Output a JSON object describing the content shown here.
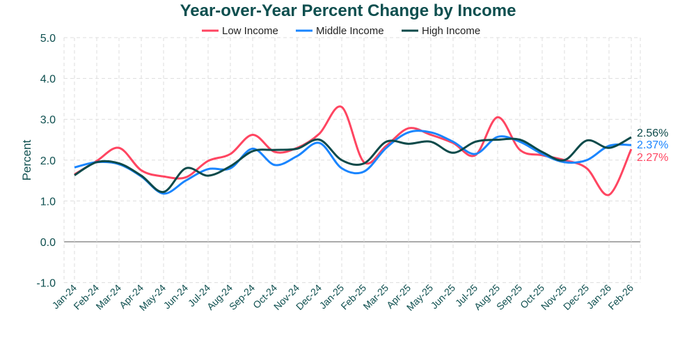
{
  "chart_data": {
    "type": "line",
    "title": "Year-over-Year Percent Change by Income",
    "ylabel": "Percent",
    "xlabel": "",
    "ylim": [
      -1,
      5
    ],
    "yticks": [
      "-1.0",
      "0.0",
      "1.0",
      "2.0",
      "3.0",
      "4.0",
      "5.0"
    ],
    "grid": true,
    "legend_position": "top",
    "categories": [
      "Jan-24",
      "Feb-24",
      "Mar-24",
      "Apr-24",
      "May-24",
      "Jun-24",
      "Jul-24",
      "Aug-24",
      "Sep-24",
      "Oct-24",
      "Nov-24",
      "Dec-24",
      "Jan-25",
      "Feb-25",
      "Mar-25",
      "Apr-25",
      "May-25",
      "Jun-25",
      "Jul-25",
      "Aug-25",
      "Sep-25",
      "Oct-25",
      "Nov-25",
      "Dec-25",
      "Jan-26",
      "Feb-26"
    ],
    "series": [
      {
        "name": "Low Income",
        "color": "#ff4561",
        "end_label": "2.27%",
        "values": [
          1.65,
          1.98,
          2.3,
          1.75,
          1.6,
          1.58,
          1.98,
          2.15,
          2.62,
          2.2,
          2.3,
          2.65,
          3.3,
          1.95,
          2.35,
          2.78,
          2.62,
          2.42,
          2.12,
          3.05,
          2.25,
          2.12,
          2.0,
          1.8,
          1.15,
          2.27
        ]
      },
      {
        "name": "Middle Income",
        "color": "#1a85ff",
        "end_label": "2.37%",
        "values": [
          1.82,
          1.95,
          1.9,
          1.6,
          1.18,
          1.5,
          1.78,
          1.8,
          2.28,
          1.88,
          2.1,
          2.42,
          1.8,
          1.72,
          2.3,
          2.68,
          2.68,
          2.45,
          2.15,
          2.57,
          2.45,
          2.15,
          1.95,
          2.0,
          2.35,
          2.37
        ]
      },
      {
        "name": "High Income",
        "color": "#0d4a4a",
        "end_label": "2.56%",
        "values": [
          1.63,
          1.95,
          1.92,
          1.62,
          1.22,
          1.8,
          1.62,
          1.85,
          2.22,
          2.25,
          2.28,
          2.5,
          2.0,
          1.92,
          2.45,
          2.4,
          2.45,
          2.18,
          2.45,
          2.5,
          2.5,
          2.2,
          2.0,
          2.48,
          2.3,
          2.56
        ]
      }
    ]
  }
}
